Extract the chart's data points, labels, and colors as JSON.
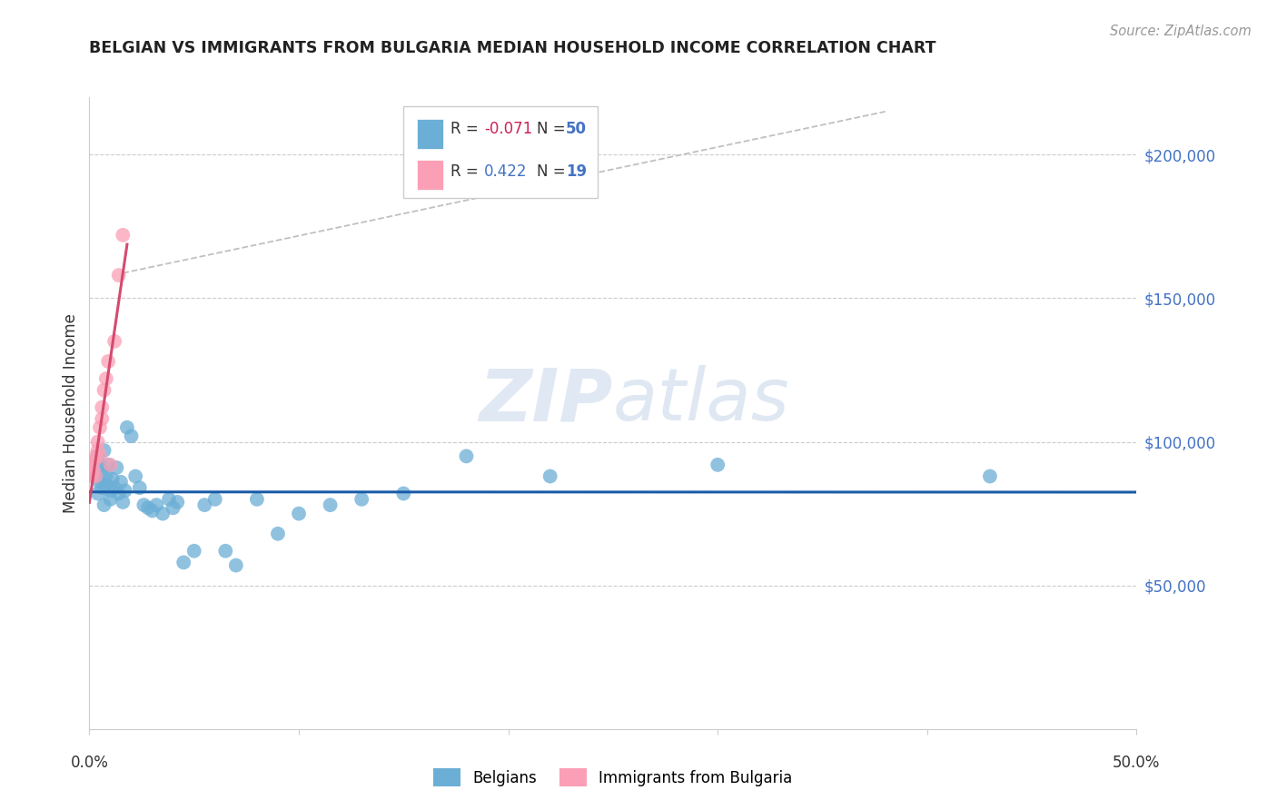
{
  "title": "BELGIAN VS IMMIGRANTS FROM BULGARIA MEDIAN HOUSEHOLD INCOME CORRELATION CHART",
  "source": "Source: ZipAtlas.com",
  "ylabel": "Median Household Income",
  "xlim": [
    0.0,
    0.5
  ],
  "ylim": [
    0,
    220000
  ],
  "watermark_zip": "ZIP",
  "watermark_atlas": "atlas",
  "legend_label1": "Belgians",
  "legend_label2": "Immigrants from Bulgaria",
  "r1": "-0.071",
  "n1": "50",
  "r2": "0.422",
  "n2": "19",
  "color_blue": "#6baed6",
  "color_pink": "#fa9fb5",
  "color_line_blue": "#1a5ca8",
  "color_line_pink": "#d64a6e",
  "yticks": [
    50000,
    100000,
    150000,
    200000
  ],
  "ytick_labels": [
    "$50,000",
    "$100,000",
    "$150,000",
    "$200,000"
  ],
  "belgians_x": [
    0.002,
    0.003,
    0.004,
    0.004,
    0.005,
    0.005,
    0.006,
    0.006,
    0.007,
    0.007,
    0.008,
    0.008,
    0.009,
    0.01,
    0.01,
    0.011,
    0.012,
    0.013,
    0.014,
    0.015,
    0.016,
    0.017,
    0.018,
    0.02,
    0.022,
    0.024,
    0.026,
    0.028,
    0.03,
    0.032,
    0.035,
    0.038,
    0.04,
    0.042,
    0.045,
    0.05,
    0.055,
    0.06,
    0.065,
    0.07,
    0.08,
    0.09,
    0.1,
    0.115,
    0.13,
    0.15,
    0.18,
    0.22,
    0.3,
    0.43
  ],
  "belgians_y": [
    93000,
    88000,
    95000,
    82000,
    92000,
    86000,
    90000,
    84000,
    97000,
    78000,
    88000,
    85000,
    92000,
    83000,
    80000,
    87000,
    84000,
    91000,
    82000,
    86000,
    79000,
    83000,
    105000,
    102000,
    88000,
    84000,
    78000,
    77000,
    76000,
    78000,
    75000,
    80000,
    77000,
    79000,
    58000,
    62000,
    78000,
    80000,
    62000,
    57000,
    80000,
    68000,
    75000,
    78000,
    80000,
    82000,
    95000,
    88000,
    92000,
    88000
  ],
  "bulgaria_x": [
    0.001,
    0.001,
    0.002,
    0.002,
    0.003,
    0.003,
    0.004,
    0.004,
    0.005,
    0.005,
    0.006,
    0.006,
    0.007,
    0.008,
    0.009,
    0.01,
    0.012,
    0.014,
    0.016
  ],
  "bulgaria_y": [
    88000,
    92000,
    93000,
    90000,
    95000,
    88000,
    97000,
    100000,
    105000,
    95000,
    108000,
    112000,
    118000,
    122000,
    128000,
    92000,
    135000,
    158000,
    172000
  ]
}
